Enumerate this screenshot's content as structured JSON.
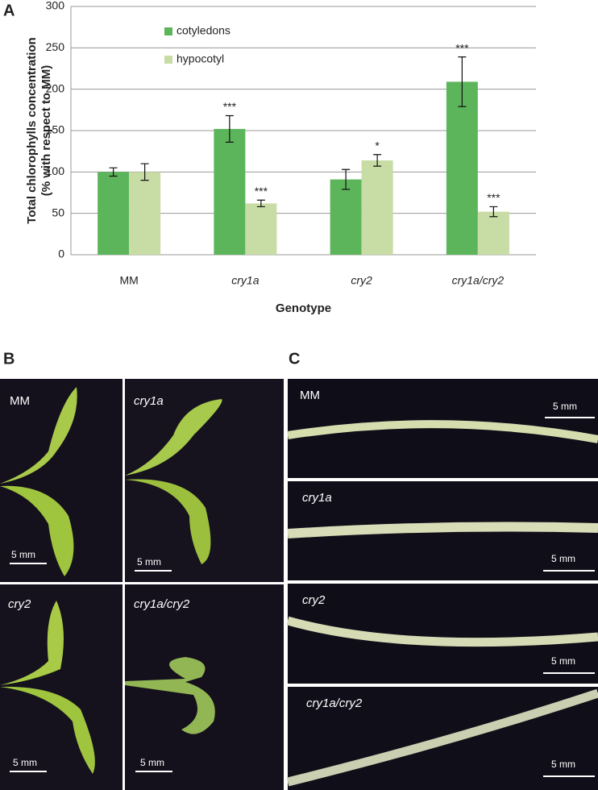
{
  "chart_data": {
    "type": "bar",
    "panel": "A",
    "ylabel": [
      "Total chlorophylls concentration",
      "(% with respect to MM)"
    ],
    "xlabel": "Genotype",
    "categories": [
      "MM",
      "cry1a",
      "cry2",
      "cry1a/cry2"
    ],
    "category_italic": [
      false,
      true,
      true,
      true
    ],
    "series": [
      {
        "name": "cotyledons",
        "color": "#5db55b",
        "values": [
          100,
          152,
          91,
          209
        ],
        "errors": [
          5,
          16,
          12,
          30
        ],
        "annotations": [
          null,
          "***",
          null,
          "***"
        ]
      },
      {
        "name": "hypocotyl",
        "color": "#c8dca5",
        "values": [
          100,
          62,
          114,
          52
        ],
        "errors": [
          10,
          4,
          7,
          6
        ],
        "annotations": [
          null,
          "***",
          "*",
          "***"
        ]
      }
    ],
    "ylim": [
      0,
      300
    ],
    "yticks": [
      0,
      50,
      100,
      150,
      200,
      250,
      300
    ],
    "grid": true
  },
  "panel_b": {
    "label": "B",
    "images": [
      {
        "label": "MM",
        "scale": "5 mm"
      },
      {
        "label": "cry1a",
        "scale": "5 mm"
      },
      {
        "label": "cry2",
        "scale": "5 mm"
      },
      {
        "label": "cry1a/cry2",
        "scale": "5 mm"
      }
    ]
  },
  "panel_c": {
    "label": "C",
    "images": [
      {
        "label": "MM",
        "scale": "5 mm"
      },
      {
        "label": "cry1a",
        "scale": "5 mm"
      },
      {
        "label": "cry2",
        "scale": "5 mm"
      },
      {
        "label": "cry1a/cry2",
        "scale": "5 mm"
      }
    ]
  }
}
